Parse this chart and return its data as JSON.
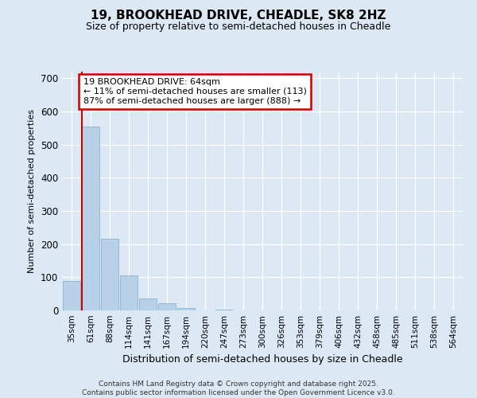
{
  "title_line1": "19, BROOKHEAD DRIVE, CHEADLE, SK8 2HZ",
  "title_line2": "Size of property relative to semi-detached houses in Cheadle",
  "xlabel": "Distribution of semi-detached houses by size in Cheadle",
  "ylabel": "Number of semi-detached properties",
  "categories": [
    "35sqm",
    "61sqm",
    "88sqm",
    "114sqm",
    "141sqm",
    "167sqm",
    "194sqm",
    "220sqm",
    "247sqm",
    "273sqm",
    "300sqm",
    "326sqm",
    "353sqm",
    "379sqm",
    "406sqm",
    "432sqm",
    "458sqm",
    "485sqm",
    "511sqm",
    "538sqm",
    "564sqm"
  ],
  "values": [
    90,
    555,
    215,
    105,
    37,
    22,
    8,
    0,
    2,
    0,
    0,
    0,
    0,
    0,
    0,
    0,
    0,
    0,
    0,
    0,
    0
  ],
  "bar_color": "#b8d0e8",
  "bar_edge_color": "#88b4d4",
  "red_line_color": "#cc0000",
  "annotation_title": "19 BROOKHEAD DRIVE: 64sqm",
  "annotation_line2": "← 11% of semi-detached houses are smaller (113)",
  "annotation_line3": "87% of semi-detached houses are larger (888) →",
  "annotation_box_facecolor": "#ffffff",
  "annotation_box_edgecolor": "#cc0000",
  "ylim": [
    0,
    720
  ],
  "yticks": [
    0,
    100,
    200,
    300,
    400,
    500,
    600,
    700
  ],
  "background_color": "#dde8f5",
  "grid_color": "#ffffff",
  "footer_line1": "Contains HM Land Registry data © Crown copyright and database right 2025.",
  "footer_line2": "Contains public sector information licensed under the Open Government Licence v3.0."
}
